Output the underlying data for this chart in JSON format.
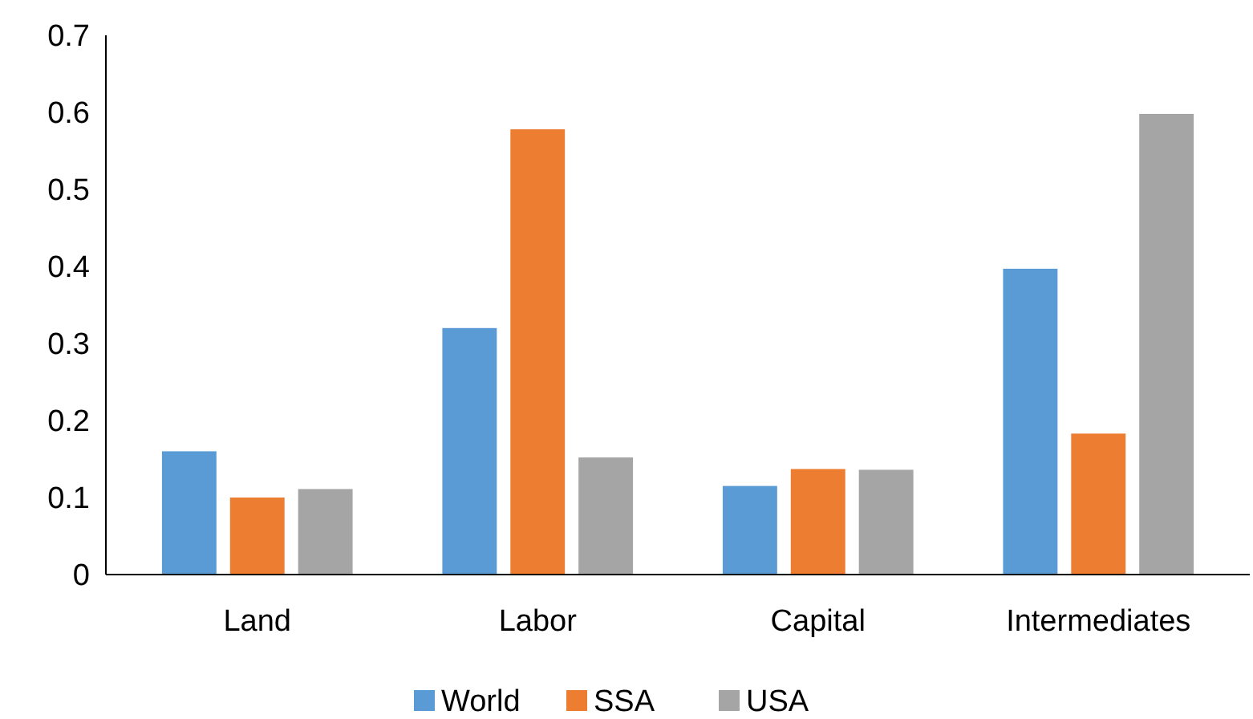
{
  "chart_data": {
    "type": "bar",
    "categories": [
      "Land",
      "Labor",
      "Capital",
      "Intermediates"
    ],
    "series": [
      {
        "name": "World",
        "color": "#5b9bd5",
        "values": [
          0.16,
          0.32,
          0.115,
          0.397
        ]
      },
      {
        "name": "SSA",
        "color": "#ed7d31",
        "values": [
          0.1,
          0.578,
          0.137,
          0.183
        ]
      },
      {
        "name": "USA",
        "color": "#a5a5a5",
        "values": [
          0.111,
          0.152,
          0.136,
          0.598
        ]
      }
    ],
    "ylim": [
      0,
      0.7
    ],
    "yticks": [
      0,
      0.1,
      0.2,
      0.3,
      0.4,
      0.5,
      0.6,
      0.7
    ],
    "grid": false,
    "legend": "bottom"
  }
}
